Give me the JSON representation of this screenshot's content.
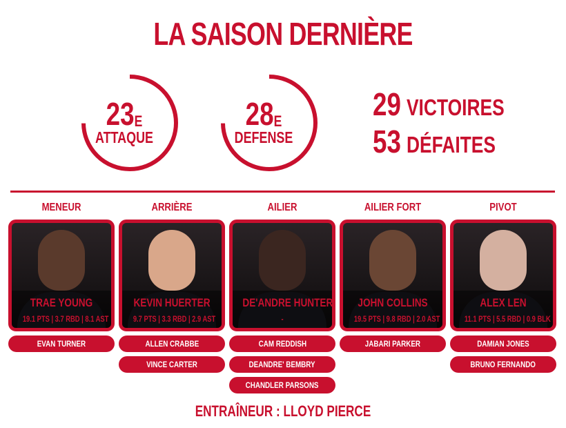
{
  "title": "LA SAISON DERNIÈRE",
  "ranks": [
    {
      "num": "23",
      "sup": "E",
      "label": "ATTAQUE"
    },
    {
      "num": "28",
      "sup": "E",
      "label": "DEFENSE"
    }
  ],
  "record": {
    "wins": "29",
    "wins_label": "VICTOIRES",
    "losses": "53",
    "losses_label": "DÉFAITES"
  },
  "accent": "#c8102e",
  "positions": [
    {
      "label": "MENEUR",
      "player": "TRAE YOUNG",
      "stats": "19.1 PTS | 3.7 RBD | 8.1 AST",
      "bench": [
        "EVAN TURNER"
      ],
      "skin": "#5a3a2c"
    },
    {
      "label": "ARRIÈRE",
      "player": "KEVIN HUERTER",
      "stats": "9.7 PTS | 3.3 RBD | 2.9 AST",
      "bench": [
        "ALLEN CRABBE",
        "VINCE CARTER"
      ],
      "skin": "#d9a78a"
    },
    {
      "label": "AILIER",
      "player": "DE'ANDRE HUNTER",
      "stats": "-",
      "bench": [
        "CAM REDDISH",
        "DEANDRE' BEMBRY",
        "CHANDLER PARSONS"
      ],
      "skin": "#3b2620"
    },
    {
      "label": "AILIER FORT",
      "player": "JOHN COLLINS",
      "stats": "19.5 PTS | 9.8 RBD | 2.0 AST",
      "bench": [
        "JABARI PARKER"
      ],
      "skin": "#6a4634"
    },
    {
      "label": "PIVOT",
      "player": "ALEX LEN",
      "stats": "11.1 PTS | 5.5 RBD | 0.9 BLK",
      "bench": [
        "DAMIAN JONES",
        "BRUNO FERNANDO"
      ],
      "skin": "#d4b0a0"
    }
  ],
  "coach": "ENTRAÎNEUR : LLOYD PIERCE"
}
